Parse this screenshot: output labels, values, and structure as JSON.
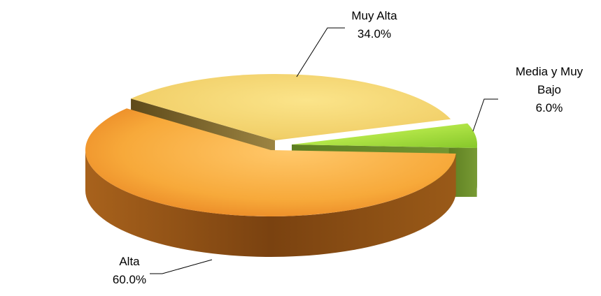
{
  "chart_data": {
    "type": "pie",
    "style": "3d-exploded",
    "categories": [
      "Alta",
      "Muy Alta",
      "Media y Muy Bajo"
    ],
    "values": [
      60.0,
      34.0,
      6.0
    ],
    "data_labels": [
      {
        "name_lines": [
          "Alta"
        ],
        "value": "60.0%"
      },
      {
        "name_lines": [
          "Muy Alta"
        ],
        "value": "34.0%"
      },
      {
        "name_lines": [
          "Media y Muy",
          "Bajo"
        ],
        "value": "6.0%"
      }
    ],
    "colors": [
      "#F7A93A",
      "#F5D36E",
      "#B9EE45"
    ],
    "side_colors": [
      "#8A4E12",
      "#7A6A34",
      "#6A8A2A"
    ],
    "legend": "none",
    "grid": false
  }
}
